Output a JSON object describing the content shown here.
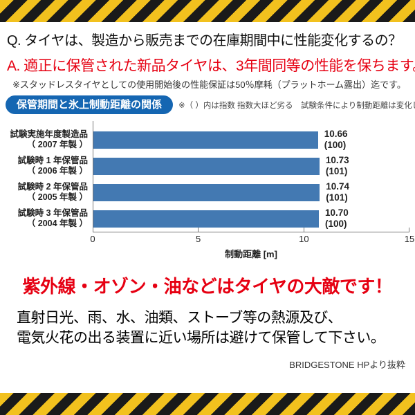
{
  "colors": {
    "accent_red": "#e60012",
    "badge_blue": "#1566b2",
    "bar_blue": "#4379b2",
    "hazard_yellow": "#f2c11e",
    "hazard_black": "#1a1a1a"
  },
  "qa": {
    "question": "Q. タイヤは、製造から販売までの在庫期間中に性能変化するの？",
    "answer": "A. 適正に保管された新品タイヤは、3年間同等の性能を保ちます。",
    "note": "※スタッドレスタイヤとしての使用開始後の性能保証は50％摩耗（プラットホーム露出）迄です。"
  },
  "chart_header": {
    "badge": "保管期間と氷上制動距離の関係",
    "note": "※（ ）内は指数 指数大ほど劣る　試験条件により制動距離は変化します。"
  },
  "chart_data": {
    "type": "bar",
    "orientation": "horizontal",
    "categories": [
      "試験実施年度製造品（2007年製）",
      "試験時1年保管品（2006年製）",
      "試験時2年保管品（2005年製）",
      "試験時3年保管品（2004年製）"
    ],
    "category_lines": [
      [
        "試験実施年度製造品",
        "（ 2007 年製 ）"
      ],
      [
        "試験時 1 年保管品",
        "（ 2006 年製 ）"
      ],
      [
        "試験時 2 年保管品",
        "（ 2005 年製 ）"
      ],
      [
        "試験時 3 年保管品",
        "（ 2004 年製 ）"
      ]
    ],
    "values": [
      10.66,
      10.73,
      10.74,
      10.7
    ],
    "index_labels": [
      "(100)",
      "(101)",
      "(101)",
      "(100)"
    ],
    "xlabel": "制動距離 [m]",
    "xlim": [
      0,
      15
    ],
    "xticks": [
      0,
      5,
      10,
      15
    ],
    "bar_color": "#4379b2",
    "grid": false,
    "legend": false
  },
  "warning": "紫外線・オゾン・油などはタイヤの大敵です！",
  "body_text": [
    "直射日光、雨、水、油類、ストーブ等の熱源及び、",
    "電気火花の出る装置に近い場所は避けて保管して下さい。"
  ],
  "credit": "BRIDGESTONE HPより抜粋"
}
